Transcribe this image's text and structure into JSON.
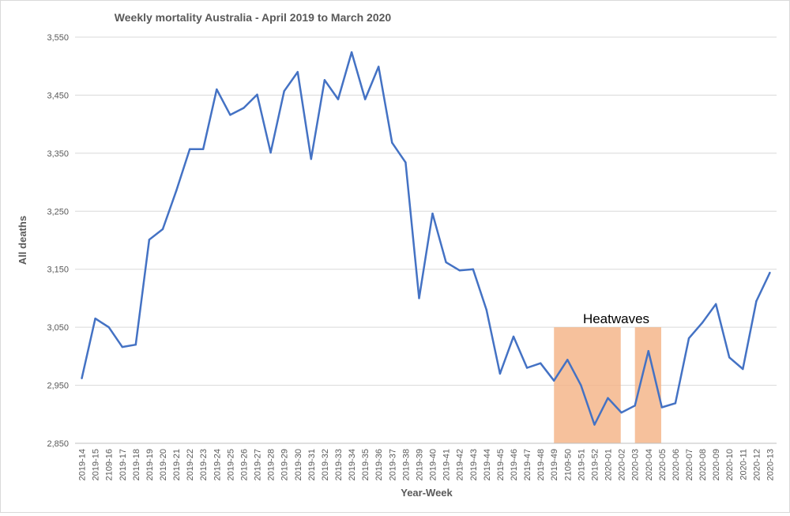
{
  "chart_data": {
    "type": "line",
    "title": "Weekly mortality Australia - April 2019 to March 2020",
    "xlabel": "Year-Week",
    "ylabel": "All deaths",
    "ylim": [
      2850,
      3550
    ],
    "yticks": [
      2850,
      2950,
      3050,
      3150,
      3250,
      3350,
      3450,
      3550
    ],
    "ytick_labels": [
      "2,850",
      "2,950",
      "3,050",
      "3,150",
      "3,250",
      "3,350",
      "3,450",
      "3,550"
    ],
    "grid": true,
    "legend": "none",
    "categories": [
      "2019-14",
      "2019-15",
      "2109-16",
      "2019-17",
      "2019-18",
      "2019-19",
      "2019-20",
      "2019-21",
      "2019-22",
      "2019-23",
      "2019-24",
      "2019-25",
      "2019-26",
      "2019-27",
      "2019-28",
      "2019-29",
      "2019-30",
      "2019-31",
      "2019-32",
      "2019-33",
      "2019-34",
      "2019-35",
      "2019-36",
      "2019-37",
      "2019-38",
      "2019-39",
      "2019-40",
      "2019-41",
      "2019-42",
      "2019-43",
      "2019-44",
      "2019-45",
      "2019-46",
      "2019-47",
      "2019-48",
      "2019-49",
      "2109-50",
      "2019-51",
      "2019-52",
      "2020-01",
      "2020-02",
      "2020-03",
      "2020-04",
      "2020-05",
      "2020-06",
      "2020-07",
      "2020-08",
      "2020-09",
      "2020-10",
      "2020-11",
      "2020-12",
      "2020-13"
    ],
    "series": [
      {
        "color": "#4472c4",
        "values": [
          2962,
          3065,
          3050,
          3016,
          3020,
          3201,
          3219,
          3285,
          3357,
          3357,
          3460,
          3416,
          3428,
          3451,
          3351,
          3457,
          3490,
          3340,
          3476,
          3443,
          3524,
          3443,
          3499,
          3368,
          3334,
          3100,
          3246,
          3162,
          3148,
          3150,
          3080,
          2970,
          3034,
          2980,
          2988,
          2958,
          2994,
          2950,
          2882,
          2928,
          2903,
          2915,
          3009,
          2912,
          2919,
          3031,
          3058,
          3090,
          2998,
          2978,
          3095,
          3144
        ]
      }
    ],
    "annotations": [
      {
        "text": "Heatwaves",
        "highlight_color": "#f4b183",
        "highlight_ranges": [
          {
            "from": "2019-49",
            "to": "2020-02",
            "y_from": 2850,
            "y_to": 3050
          },
          {
            "from": "2020-03",
            "to": "2020-05",
            "y_from": 2850,
            "y_to": 3050
          }
        ]
      }
    ]
  }
}
